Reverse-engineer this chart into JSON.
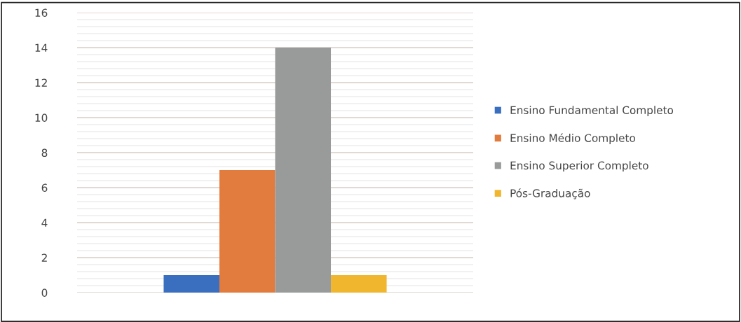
{
  "chart_data": {
    "type": "bar",
    "categories": [
      null
    ],
    "series": [
      {
        "name": "Ensino Fundamental Completo",
        "color": "#3a6fbf",
        "values": [
          1
        ]
      },
      {
        "name": "Ensino Médio Completo",
        "color": "#e27c3e",
        "values": [
          7
        ]
      },
      {
        "name": "Ensino Superior Completo",
        "color": "#999b9b",
        "values": [
          14
        ]
      },
      {
        "name": "Pós-Graduação",
        "color": "#f0b62e",
        "values": [
          1
        ]
      }
    ],
    "ylim": [
      0,
      16
    ],
    "yticks": [
      0,
      2,
      4,
      6,
      8,
      10,
      12,
      14,
      16
    ],
    "grid": "y",
    "legend": "right"
  }
}
